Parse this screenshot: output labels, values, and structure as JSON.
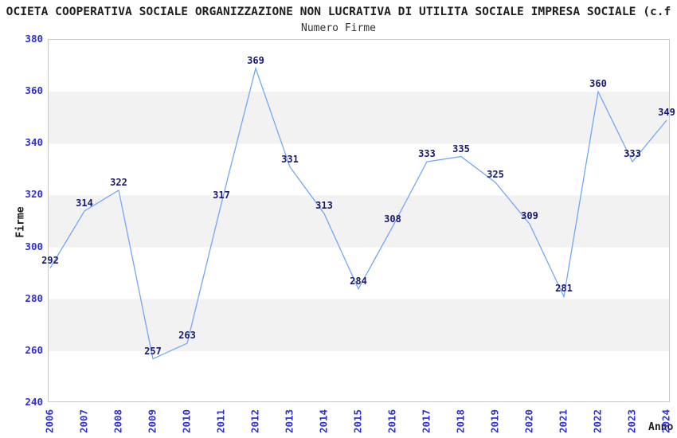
{
  "title": "OCIETA COOPERATIVA SOCIALE ORGANIZZAZIONE NON LUCRATIVA DI UTILITA SOCIALE IMPRESA SOCIALE (c.f",
  "subtitle": "Numero Firme",
  "chart_data": {
    "type": "line",
    "title": "Numero Firme",
    "xlabel": "Anno",
    "ylabel": "Firme",
    "x": [
      2006,
      2007,
      2008,
      2009,
      2010,
      2011,
      2012,
      2013,
      2014,
      2015,
      2016,
      2017,
      2018,
      2019,
      2020,
      2021,
      2022,
      2023,
      2024
    ],
    "series": [
      {
        "name": "Numero Firme",
        "values": [
          292,
          314,
          322,
          257,
          263,
          317,
          369,
          331,
          313,
          284,
          308,
          333,
          335,
          325,
          309,
          281,
          360,
          333,
          349
        ]
      }
    ],
    "ylim": [
      240,
      380
    ],
    "ytick_step": 20,
    "yticks": [
      "240",
      "260",
      "280",
      "300",
      "320",
      "340",
      "360",
      "380"
    ],
    "grid": "alternating horizontal gray/white bands, no vertical gridlines",
    "legend": "none",
    "point_labels_visible": true,
    "x_tick_rotation_deg": -90,
    "colors": {
      "line": "#74a7f2",
      "tick_labels": "#3030d0",
      "point_labels": "#191970",
      "band": "#f2f2f2",
      "plot_border": "#c8c8c8",
      "title_text": "#1f1f1f",
      "subtitle_text": "#333333",
      "axis_title_text": "#1a1a1a"
    }
  }
}
